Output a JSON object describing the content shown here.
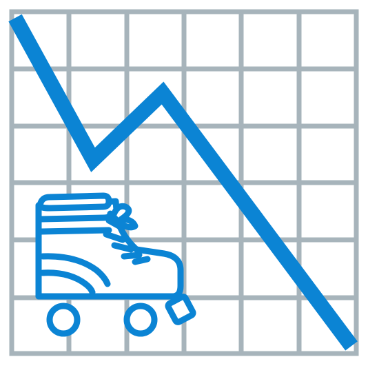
{
  "colors": {
    "background": "#ffffff",
    "grid": "#a7b4bb",
    "trend_line": "#0b84d4",
    "skate": "#0b84d4",
    "skate_fill": "#ffffff"
  },
  "icons": {
    "chart": "declining-line-chart-icon",
    "skate": "roller-skate-icon"
  }
}
